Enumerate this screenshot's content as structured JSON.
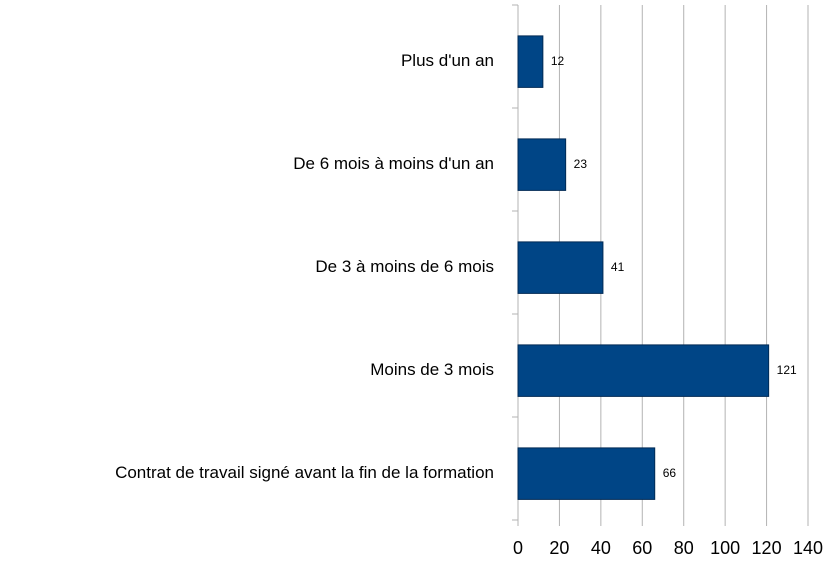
{
  "chart_data": {
    "type": "barh",
    "categories": [
      "Plus d'un an",
      "De 6 mois à moins d'un an",
      "De 3 à moins de 6 mois",
      "Moins de 3 mois",
      "Contrat de travail signé avant la fin de la formation"
    ],
    "values": [
      12,
      23,
      41,
      121,
      66
    ],
    "color": "#004586",
    "xlim": [
      0,
      140
    ],
    "xticks": [
      0,
      20,
      40,
      60,
      80,
      100,
      120,
      140
    ],
    "grid": true
  }
}
